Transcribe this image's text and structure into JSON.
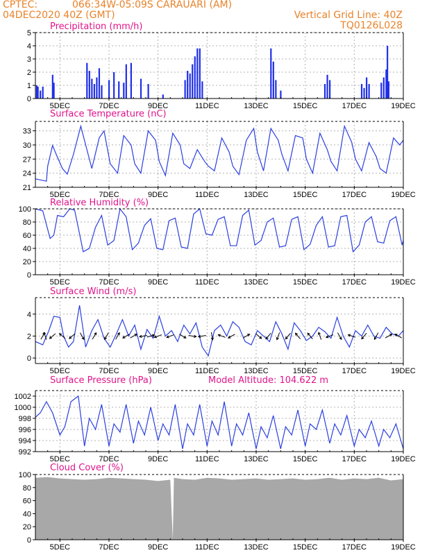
{
  "header": {
    "source": "CPTEC:",
    "location": "066:34W-05:09S  CARAUARI (AM)",
    "date": "04DEC2020 40Z (GMT)",
    "grid_note": "Vertical Grid Line: 40Z",
    "code": "TQ0126L028"
  },
  "x_axis": {
    "tick_labels": [
      "5DEC",
      "7DEC",
      "9DEC",
      "11DEC",
      "13DEC",
      "15DEC",
      "17DEC",
      "19DEC"
    ],
    "tick_days": [
      5,
      7,
      9,
      11,
      13,
      15,
      17,
      19
    ],
    "range_days": [
      4.0,
      19.0
    ]
  },
  "colors": {
    "line": "#2a3fe0",
    "bar": "#1f2fe8",
    "cloud": "#a8a8a8",
    "title": "#e0148c",
    "header": "#e8822a",
    "grid": "#b0b0b0"
  },
  "chart_data": [
    {
      "type": "bar",
      "title": "Precipitation (mm/h)",
      "ylim": [
        0,
        5
      ],
      "yticks": [
        0,
        1,
        2,
        3,
        4,
        5
      ],
      "grid": true,
      "x_days": [
        4.05,
        4.1,
        4.2,
        4.3,
        4.7,
        4.75,
        6.1,
        6.2,
        6.3,
        6.4,
        6.5,
        6.6,
        6.7,
        7.0,
        7.2,
        7.4,
        7.6,
        7.7,
        7.9,
        8.3,
        8.6,
        9.2,
        10.1,
        10.2,
        10.3,
        10.4,
        10.5,
        10.6,
        10.7,
        10.8,
        13.6,
        13.7,
        13.8,
        14.0,
        15.8,
        15.9,
        16.0,
        17.3,
        17.4,
        17.5,
        17.6,
        18.1,
        18.2,
        18.3,
        18.35,
        18.4
      ],
      "values": [
        1.0,
        0.9,
        0.6,
        0.9,
        1.8,
        1.2,
        2.7,
        2.1,
        1.5,
        1.1,
        1.6,
        2.3,
        1.0,
        1.4,
        2.0,
        1.3,
        1.2,
        2.6,
        2.7,
        1.5,
        1.1,
        0.3,
        1.4,
        2.1,
        1.9,
        2.6,
        3.2,
        3.8,
        3.8,
        1.3,
        3.8,
        2.8,
        1.4,
        0.6,
        1.1,
        1.8,
        1.4,
        1.1,
        0.8,
        1.6,
        1.1,
        1.2,
        1.6,
        2.2,
        4.0,
        1.3
      ]
    },
    {
      "type": "line",
      "title": "Surface Temperature (nC)",
      "ylim": [
        21,
        35
      ],
      "yticks": [
        21,
        24,
        27,
        30,
        33
      ],
      "grid": true,
      "x": [
        4.0,
        4.45,
        4.5,
        4.7,
        4.85,
        5.1,
        5.3,
        5.55,
        5.85,
        6.05,
        6.3,
        6.6,
        6.8,
        7.05,
        7.35,
        7.6,
        7.9,
        8.05,
        8.3,
        8.6,
        8.9,
        9.05,
        9.3,
        9.6,
        9.9,
        10.05,
        10.3,
        10.6,
        10.9,
        11.05,
        11.3,
        11.6,
        11.9,
        12.05,
        12.3,
        12.6,
        12.9,
        13.05,
        13.3,
        13.6,
        13.9,
        14.05,
        14.3,
        14.6,
        14.9,
        15.05,
        15.3,
        15.6,
        15.9,
        16.05,
        16.3,
        16.6,
        16.9,
        17.05,
        17.3,
        17.6,
        17.9,
        18.05,
        18.3,
        18.6,
        18.85,
        19.0
      ],
      "values": [
        22.8,
        22.3,
        25.5,
        29.9,
        28.0,
        25.0,
        23.8,
        28.0,
        34.0,
        30.0,
        25.0,
        31.5,
        33.0,
        26.0,
        24.0,
        32.0,
        30.0,
        26.0,
        24.0,
        33.0,
        31.0,
        26.5,
        23.5,
        32.5,
        30.0,
        26.0,
        25.0,
        29.0,
        26.5,
        25.5,
        24.5,
        31.5,
        28.5,
        25.5,
        23.7,
        31.0,
        33.5,
        28.5,
        24.5,
        33.5,
        31.0,
        28.0,
        24.5,
        32.0,
        31.5,
        27.0,
        24.0,
        32.5,
        29.0,
        26.5,
        24.5,
        34.0,
        30.5,
        27.0,
        24.5,
        30.5,
        27.5,
        25.0,
        24.0,
        31.5,
        30.0,
        31.0
      ]
    },
    {
      "type": "line",
      "title": "Relative Humidity (%)",
      "ylim": [
        0,
        100
      ],
      "yticks": [
        0,
        20,
        40,
        60,
        80,
        100
      ],
      "grid": true,
      "x": [
        4.0,
        4.3,
        4.6,
        4.75,
        4.9,
        5.15,
        5.4,
        5.6,
        5.95,
        6.2,
        6.45,
        6.7,
        6.95,
        7.2,
        7.45,
        7.7,
        7.95,
        8.2,
        8.45,
        8.7,
        8.95,
        9.2,
        9.45,
        9.7,
        9.95,
        10.2,
        10.45,
        10.7,
        10.95,
        11.2,
        11.45,
        11.7,
        11.95,
        12.2,
        12.45,
        12.7,
        12.95,
        13.2,
        13.45,
        13.7,
        13.95,
        14.2,
        14.45,
        14.7,
        14.95,
        15.2,
        15.45,
        15.7,
        15.95,
        16.2,
        16.45,
        16.7,
        16.95,
        17.2,
        17.45,
        17.7,
        17.95,
        18.2,
        18.45,
        18.7,
        18.95,
        19.0
      ],
      "values": [
        100,
        97,
        55,
        60,
        90,
        88,
        100,
        98,
        35,
        40,
        72,
        90,
        45,
        52,
        100,
        88,
        38,
        48,
        75,
        85,
        40,
        38,
        82,
        86,
        42,
        40,
        92,
        100,
        62,
        60,
        84,
        88,
        44,
        44,
        90,
        98,
        45,
        52,
        80,
        86,
        42,
        44,
        84,
        88,
        38,
        46,
        75,
        88,
        42,
        44,
        88,
        90,
        35,
        45,
        80,
        88,
        50,
        48,
        82,
        88,
        45,
        52
      ]
    },
    {
      "type": "line",
      "title": "Surface Wind (m/s)",
      "ylim": [
        -0.5,
        5.5
      ],
      "yticks": [
        0,
        2,
        4
      ],
      "grid": true,
      "x": [
        4.0,
        4.3,
        4.55,
        4.75,
        5.0,
        5.15,
        5.35,
        5.55,
        5.8,
        6.05,
        6.3,
        6.55,
        6.8,
        7.05,
        7.3,
        7.55,
        7.8,
        8.05,
        8.3,
        8.55,
        8.8,
        9.05,
        9.3,
        9.55,
        9.8,
        10.05,
        10.3,
        10.55,
        10.8,
        11.05,
        11.3,
        11.55,
        11.8,
        12.05,
        12.3,
        12.55,
        12.8,
        13.05,
        13.3,
        13.55,
        13.8,
        14.05,
        14.3,
        14.55,
        14.8,
        15.05,
        15.3,
        15.55,
        15.8,
        16.05,
        16.3,
        16.55,
        16.8,
        17.05,
        17.3,
        17.55,
        17.8,
        18.05,
        18.3,
        18.55,
        18.8,
        19.0
      ],
      "values": [
        1.5,
        1.2,
        2.5,
        3.8,
        3.7,
        2.0,
        1.0,
        1.5,
        4.8,
        1.0,
        2.5,
        3.5,
        1.8,
        1.0,
        2.2,
        3.5,
        2.0,
        3.0,
        0.8,
        2.6,
        1.8,
        3.8,
        2.0,
        2.5,
        1.5,
        3.0,
        2.2,
        3.2,
        1.0,
        0.2,
        2.5,
        3.0,
        2.0,
        3.3,
        2.8,
        1.5,
        1.2,
        2.5,
        2.0,
        1.5,
        3.3,
        2.2,
        0.8,
        3.2,
        2.5,
        1.6,
        2.0,
        2.8,
        2.4,
        1.8,
        3.7,
        2.0,
        1.0,
        2.5,
        2.0,
        3.0,
        2.0,
        1.8,
        2.8,
        2.2,
        2.0,
        2.5
      ],
      "arrow_x": [
        4.3,
        4.4,
        4.7,
        5.1,
        5.5,
        5.9,
        6.4,
        6.9,
        7.35,
        7.7,
        8.0,
        8.4,
        8.7,
        9.0,
        9.5,
        10.0,
        10.4,
        10.8,
        11.2,
        11.6,
        12.0,
        12.6,
        13.1,
        13.5,
        13.9,
        14.3,
        14.7,
        15.2,
        15.6,
        16.0,
        16.4,
        16.9,
        17.4,
        17.9,
        18.4,
        18.8
      ],
      "arrow_dir_deg": [
        60,
        110,
        220,
        140,
        220,
        300,
        60,
        240,
        60,
        210,
        30,
        190,
        15,
        200,
        200,
        330,
        350,
        190,
        280,
        160,
        210,
        30,
        320,
        230,
        250,
        230,
        130,
        130,
        110,
        200,
        300,
        160,
        230,
        240,
        30,
        150
      ]
    },
    {
      "type": "line",
      "title": "Surface Pressure (hPa)",
      "annotation": "Model Altitude: 104.622 m",
      "ylim": [
        992,
        1003
      ],
      "yticks": [
        992,
        994,
        996,
        998,
        1000,
        1002
      ],
      "grid": true,
      "x": [
        4.0,
        4.2,
        4.45,
        4.7,
        5.0,
        5.2,
        5.45,
        5.75,
        6.0,
        6.2,
        6.45,
        6.7,
        7.0,
        7.2,
        7.45,
        7.7,
        8.0,
        8.2,
        8.45,
        8.7,
        9.0,
        9.2,
        9.45,
        9.7,
        10.0,
        10.2,
        10.45,
        10.7,
        11.0,
        11.2,
        11.45,
        11.7,
        12.0,
        12.2,
        12.45,
        12.7,
        13.0,
        13.2,
        13.45,
        13.7,
        14.0,
        14.2,
        14.45,
        14.7,
        15.0,
        15.2,
        15.45,
        15.7,
        16.0,
        16.2,
        16.45,
        16.7,
        17.0,
        17.2,
        17.45,
        17.7,
        18.0,
        18.2,
        18.45,
        18.7,
        19.0
      ],
      "values": [
        998.2,
        999.0,
        1001.0,
        999.0,
        995.0,
        996.5,
        1001.0,
        1002.0,
        993.0,
        998.0,
        996.0,
        1000.5,
        993.0,
        997.0,
        995.5,
        1000.5,
        993.5,
        997.5,
        995.0,
        1000.0,
        994.0,
        997.0,
        995.0,
        1000.5,
        992.5,
        997.0,
        995.0,
        1000.5,
        993.0,
        997.5,
        995.0,
        1001.0,
        993.0,
        997.0,
        995.0,
        999.0,
        992.5,
        996.5,
        994.5,
        998.5,
        992.5,
        996.5,
        995.0,
        999.5,
        993.0,
        997.0,
        996.0,
        999.5,
        993.5,
        997.0,
        995.0,
        998.5,
        993.0,
        996.0,
        994.5,
        997.5,
        993.0,
        996.0,
        994.5,
        997.0,
        992.5
      ]
    },
    {
      "type": "area",
      "title": "Cloud Cover (%)",
      "ylim": [
        0,
        100
      ],
      "yticks": [
        0,
        20,
        40,
        60,
        80,
        100
      ],
      "grid": false,
      "x": [
        4.0,
        4.5,
        5.0,
        5.5,
        6.0,
        6.5,
        7.0,
        7.5,
        8.0,
        8.5,
        9.0,
        9.5,
        9.6,
        9.65,
        10.0,
        10.5,
        11.0,
        11.5,
        12.0,
        12.5,
        13.0,
        13.5,
        14.0,
        14.5,
        15.0,
        15.5,
        16.0,
        16.5,
        17.0,
        17.5,
        18.0,
        18.5,
        19.0
      ],
      "values": [
        95,
        96,
        94,
        93,
        92,
        93,
        95,
        94,
        93,
        92,
        90,
        92,
        0,
        95,
        93,
        92,
        95,
        94,
        92,
        93,
        94,
        92,
        93,
        94,
        92,
        93,
        95,
        92,
        94,
        93,
        95,
        91,
        93
      ]
    }
  ]
}
